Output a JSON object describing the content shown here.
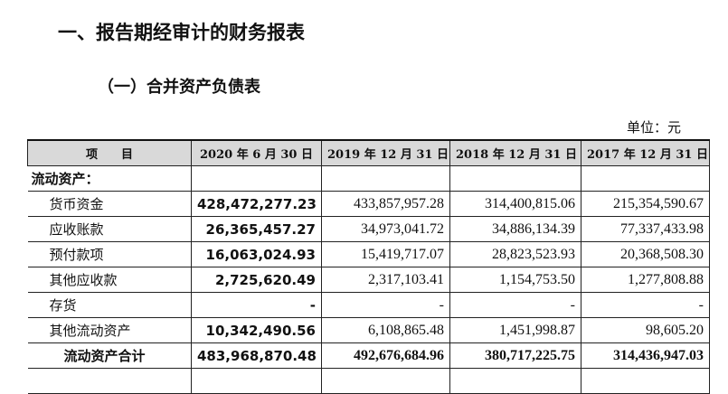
{
  "title": "一、报告期经审计的财务报表",
  "subtitle": "（一）合并资产负债表",
  "unit": "单位：元",
  "table": {
    "headers": [
      "项　　目",
      "2020 年 6 月 30 日",
      "2019 年 12 月 31 日",
      "2018 年 12 月 31 日",
      "2017 年 12 月 31 日"
    ],
    "section": "流动资产：",
    "rows": [
      {
        "label": "货币资金",
        "values": [
          "428,472,277.23",
          "433,857,957.28",
          "314,400,815.06",
          "215,354,590.67"
        ]
      },
      {
        "label": "应收账款",
        "values": [
          "26,365,457.27",
          "34,973,041.72",
          "34,886,134.39",
          "77,337,433.98"
        ]
      },
      {
        "label": "预付款项",
        "values": [
          "16,063,024.93",
          "15,419,717.07",
          "28,823,523.93",
          "20,368,508.30"
        ]
      },
      {
        "label": "其他应收款",
        "values": [
          "2,725,620.49",
          "2,317,103.41",
          "1,154,753.50",
          "1,277,808.88"
        ]
      },
      {
        "label": "存货",
        "values": [
          "-",
          "-",
          "-",
          "-"
        ]
      },
      {
        "label": "其他流动资产",
        "values": [
          "10,342,490.56",
          "6,108,865.48",
          "1,451,998.87",
          "98,605.20"
        ]
      }
    ],
    "total": {
      "label": "流动资产合计",
      "values": [
        "483,968,870.48",
        "492,676,684.96",
        "380,717,225.75",
        "314,436,947.03"
      ]
    }
  }
}
